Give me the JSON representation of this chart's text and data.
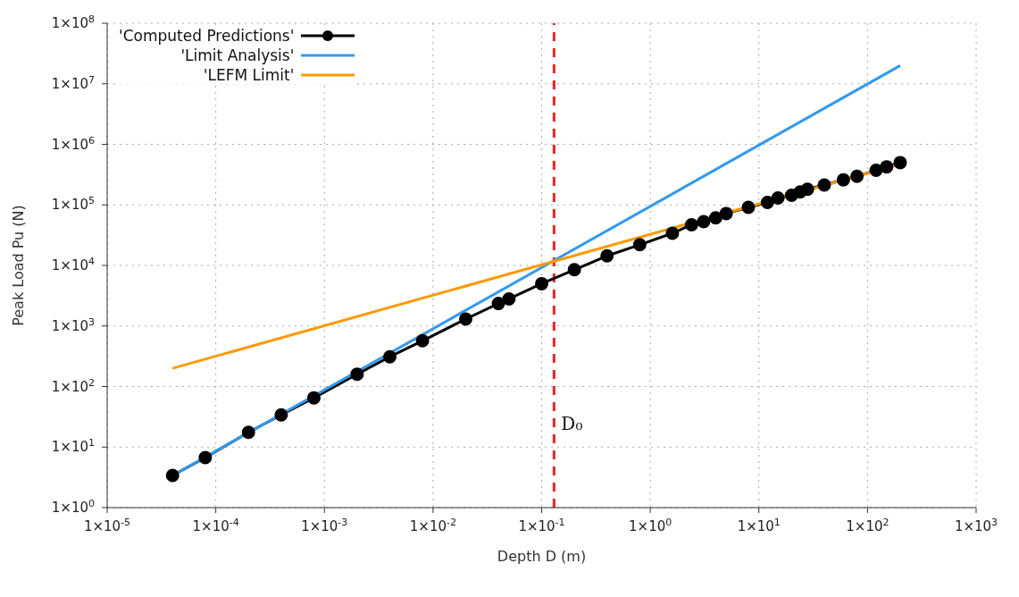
{
  "chart_data": {
    "type": "line",
    "xlabel": "Depth D (m)",
    "ylabel": "Peak Load Pu (N)",
    "log": "xy",
    "grid": true,
    "legend": "top left",
    "xlim": [
      1e-05,
      1000
    ],
    "ylim": [
      1,
      100000000
    ],
    "xticks": [
      {
        "value": 1e-05,
        "label": "1×10$^{-5}$"
      },
      {
        "value": 0.0001,
        "label": "1×10$^{-4}$"
      },
      {
        "value": 0.001,
        "label": "1×10$^{-3}$"
      },
      {
        "value": 0.01,
        "label": "1×10$^{-2}$"
      },
      {
        "value": 0.1,
        "label": "1×10$^{-1}$"
      },
      {
        "value": 1,
        "label": "1×10$^{0}$"
      },
      {
        "value": 10,
        "label": "1×10$^{1}$"
      },
      {
        "value": 100,
        "label": "1×10$^{2}$"
      },
      {
        "value": 1000,
        "label": "1×10$^{3}$"
      }
    ],
    "yticks": [
      {
        "value": 1,
        "label": "1×10$^{0}$"
      },
      {
        "value": 10,
        "label": "1×10$^{1}$"
      },
      {
        "value": 100,
        "label": "1×10$^{2}$"
      },
      {
        "value": 1000,
        "label": "1×10$^{3}$"
      },
      {
        "value": 10000,
        "label": "1×10$^{4}$"
      },
      {
        "value": 100000,
        "label": "1×10$^{5}$"
      },
      {
        "value": 1000000,
        "label": "1×10$^{6}$"
      },
      {
        "value": 10000000,
        "label": "1×10$^{7}$"
      },
      {
        "value": 100000000,
        "label": "1×10$^{8}$"
      }
    ],
    "series": [
      {
        "name": "'Computed Predictions'",
        "color": "#000000",
        "marker": "circle",
        "x": [
          4e-05,
          8e-05,
          0.0002,
          0.0004,
          0.0008,
          0.002,
          0.004,
          0.008,
          0.02,
          0.04,
          0.05,
          0.1,
          0.2,
          0.4,
          0.8,
          1.6,
          2.4,
          3.1,
          4,
          5,
          8,
          12,
          15,
          20,
          24,
          28,
          40,
          60,
          80,
          120,
          150,
          200
        ],
        "values": [
          3.4,
          6.7,
          17.5,
          34,
          65,
          160,
          310,
          570,
          1300,
          2350,
          2800,
          5000,
          8500,
          14400,
          22000,
          34000,
          47000,
          53000,
          61000,
          72000,
          91000,
          110000,
          130000,
          144000,
          164000,
          181000,
          213000,
          260000,
          296000,
          373000,
          425000,
          500000
        ]
      },
      {
        "name": "'Limit Analysis'",
        "color": "#3399ee",
        "marker": "none",
        "x": [
          4e-05,
          200
        ],
        "values": [
          3.4,
          20000000
        ]
      },
      {
        "name": "'LEFM Limit'",
        "color": "#ff9900",
        "marker": "none",
        "x": [
          4e-05,
          200
        ],
        "values": [
          200,
          470000
        ]
      }
    ],
    "ref_lines": [
      {
        "axis": "x",
        "value": 0.13,
        "label": "D₀",
        "color": "#ee2222",
        "line_style": "dashed"
      }
    ]
  }
}
